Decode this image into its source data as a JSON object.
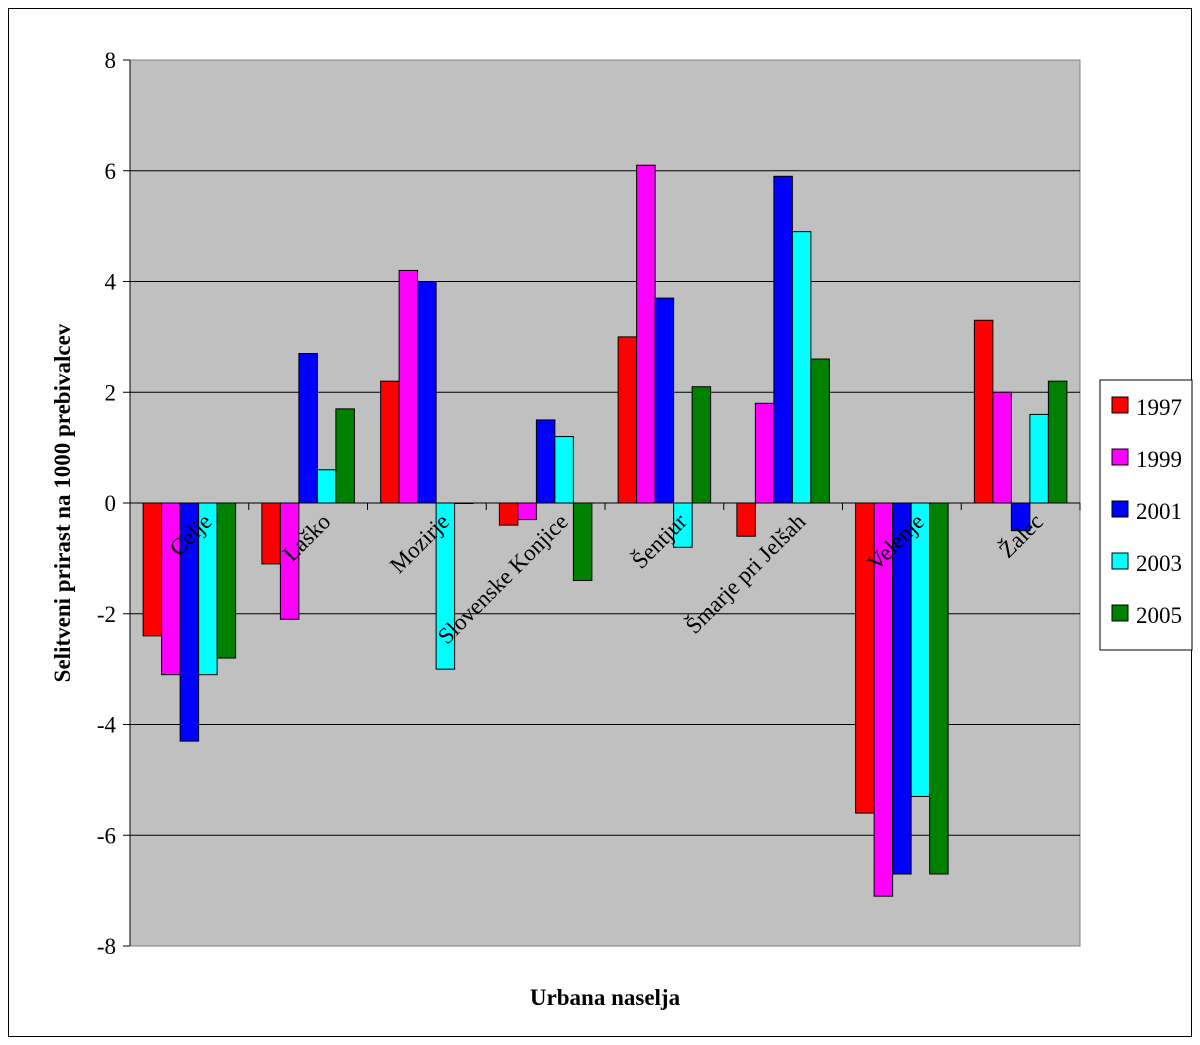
{
  "chart_data": {
    "type": "bar",
    "title": "",
    "xlabel": "Urbana naselja",
    "ylabel": "Selitveni prirast na 1000 prebivalcev",
    "ylim": [
      -8,
      8
    ],
    "yticks": [
      "8",
      "6",
      "4",
      "2",
      "0",
      "-2",
      "-4",
      "-6",
      "-8"
    ],
    "grid": true,
    "legend_position": "right",
    "categories": [
      "Celje",
      "Laško",
      "Mozirje",
      "Slovenske Konjice",
      "Šentjur",
      "Šmarje pri Jelšah",
      "Velenje",
      "Žalec"
    ],
    "series": [
      {
        "name": "1997",
        "color": "#ff0000",
        "values": [
          -2.4,
          -1.1,
          2.2,
          -0.4,
          3.0,
          -0.6,
          -5.6,
          3.3
        ]
      },
      {
        "name": "1999",
        "color": "#ff00ff",
        "values": [
          -3.1,
          -2.1,
          4.2,
          -0.3,
          6.1,
          1.8,
          -7.1,
          2.0
        ]
      },
      {
        "name": "2001",
        "color": "#0000ff",
        "values": [
          -4.3,
          2.7,
          4.0,
          1.5,
          3.7,
          5.9,
          -6.7,
          -0.5
        ]
      },
      {
        "name": "2003",
        "color": "#00ffff",
        "values": [
          -3.1,
          0.6,
          -3.0,
          1.2,
          -0.8,
          4.9,
          -5.3,
          1.6
        ]
      },
      {
        "name": "2005",
        "color": "#008000",
        "values": [
          -2.8,
          1.7,
          0.0,
          -1.4,
          2.1,
          2.6,
          -6.7,
          2.2
        ]
      }
    ],
    "plot_background": "#c0c0c0"
  }
}
